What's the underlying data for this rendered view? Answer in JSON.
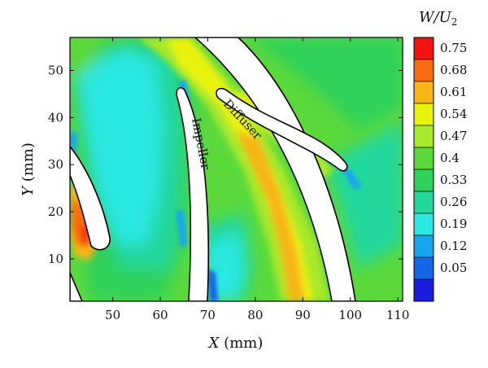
{
  "chart_data": {
    "type": "heatmap",
    "title": "",
    "xlabel_var": "X",
    "xlabel_unit": " (mm)",
    "ylabel_var": "Y",
    "ylabel_unit": " (mm)",
    "xlim": [
      41,
      111
    ],
    "ylim": [
      1,
      57
    ],
    "x_ticks": [
      50,
      60,
      70,
      80,
      90,
      100,
      110
    ],
    "y_ticks": [
      10,
      20,
      30,
      40,
      50
    ],
    "colorbar": {
      "label_var": "W/U",
      "label_sub": "2",
      "levels": [
        0.75,
        0.68,
        0.61,
        0.54,
        0.47,
        0.4,
        0.33,
        0.26,
        0.19,
        0.12,
        0.05
      ],
      "colors": [
        "#f0130f",
        "#fa6a10",
        "#f7b516",
        "#e8f20a",
        "#a9e82a",
        "#5bd93b",
        "#2ed15a",
        "#22d79c",
        "#2ce8e2",
        "#15a6ee",
        "#1566e6",
        "#1b1ddf"
      ]
    },
    "annotations": [
      "Impeller",
      "Diffuser"
    ]
  }
}
